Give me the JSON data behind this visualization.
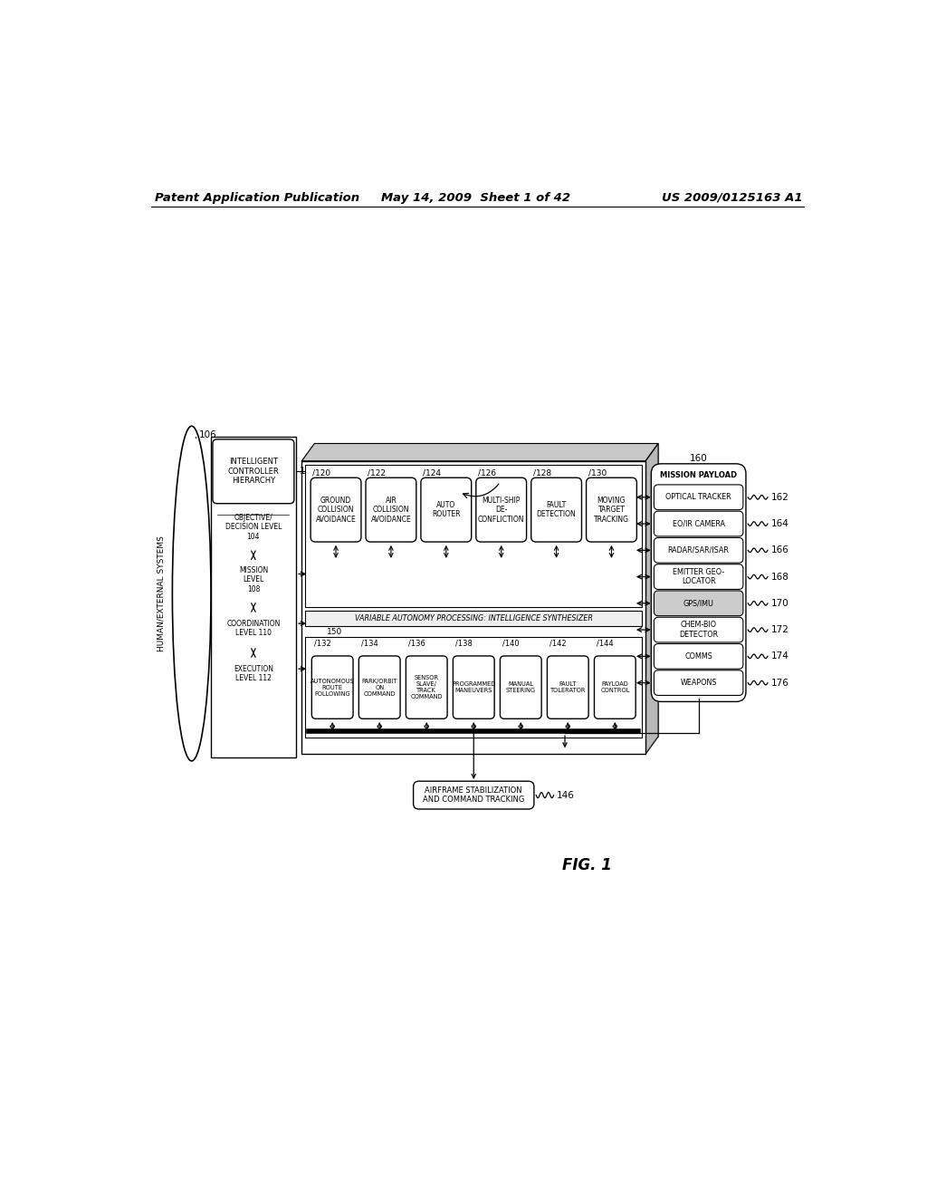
{
  "title": "Patent Application Publication",
  "date": "May 14, 2009  Sheet 1 of 42",
  "patent_num": "US 2009/0125163 A1",
  "fig_label": "FIG. 1",
  "background": "#ffffff",
  "mission_boxes": [
    {
      "ref": "120",
      "text": "GROUND\nCOLLISION\nAVOIDANCE"
    },
    {
      "ref": "122",
      "text": "AIR\nCOLLISION\nAVOIDANCE"
    },
    {
      "ref": "124",
      "text": "AUTO\nROUTER"
    },
    {
      "ref": "126",
      "text": "MULTI-SHIP\nDE-\nCONFLICTION"
    },
    {
      "ref": "128",
      "text": "FAULT\nDETECTION"
    },
    {
      "ref": "130",
      "text": "MOVING\nTARGET\nTRACKING"
    }
  ],
  "synth_label": "VARIABLE AUTONOMY PROCESSING: INTELLIGENCE SYNTHESIZER",
  "synth_ref": "150",
  "execution_boxes": [
    {
      "ref": "132",
      "text": "AUTONOMOUS\nROUTE\nFOLLOWING"
    },
    {
      "ref": "134",
      "text": "PARK/ORBIT\nON\nCOMMAND"
    },
    {
      "ref": "136",
      "text": "SENSOR\nSLAVE/\nTRACK\nCOMMAND"
    },
    {
      "ref": "138",
      "text": "PROGRAMMED\nMANEUVERS"
    },
    {
      "ref": "140",
      "text": "MANUAL\nSTEERING"
    },
    {
      "ref": "142",
      "text": "FAULT\nTOLERATOR"
    },
    {
      "ref": "144",
      "text": "PAYLOAD\nCONTROL"
    }
  ],
  "airframe_text": "AIRFRAME STABILIZATION\nAND COMMAND TRACKING",
  "airframe_ref": "146",
  "payload_header": "MISSION PAYLOAD",
  "payload_ref": "160",
  "payload_items": [
    {
      "text": "OPTICAL TRACKER",
      "ref": "162"
    },
    {
      "text": "EO/IR CAMERA",
      "ref": "164"
    },
    {
      "text": "RADAR/SAR/ISAR",
      "ref": "166"
    },
    {
      "text": "EMITTER GEO-\nLOCATOR",
      "ref": "168"
    },
    {
      "text": "GPS/IMU",
      "ref": "170"
    },
    {
      "text": "CHEM-BIO\nDETECTOR",
      "ref": "172"
    },
    {
      "text": "COMMS",
      "ref": "174"
    },
    {
      "text": "WEAPONS",
      "ref": "176"
    }
  ]
}
